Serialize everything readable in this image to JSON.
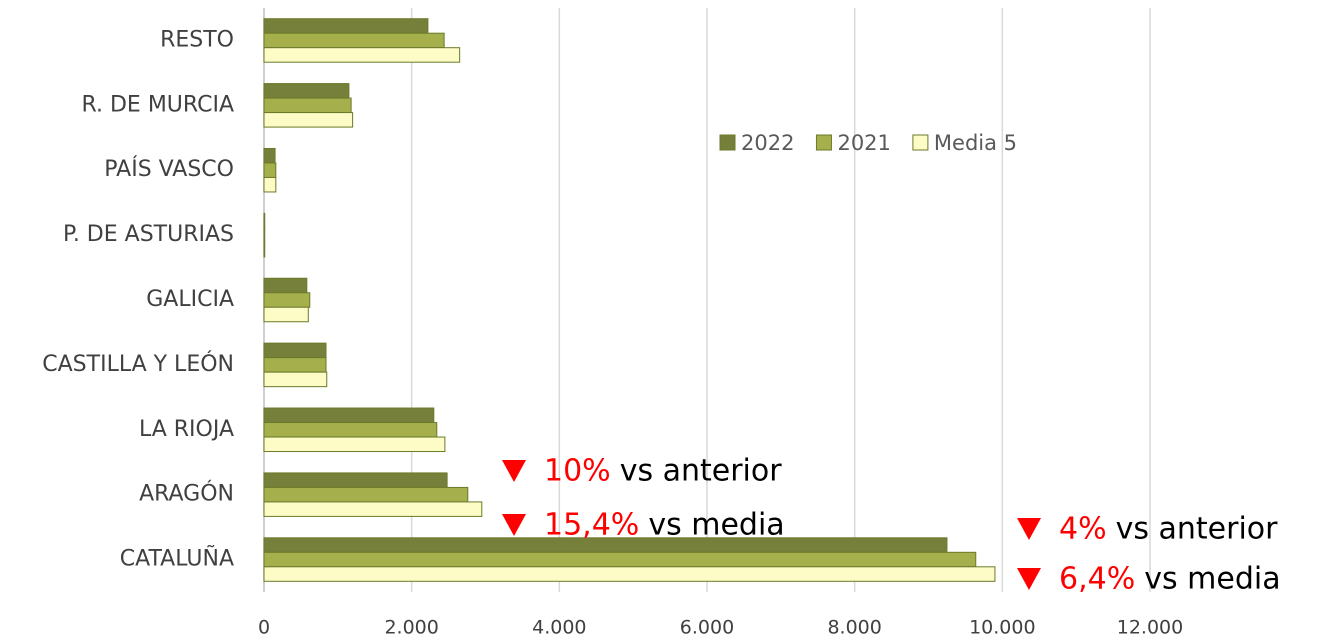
{
  "chart_data": {
    "type": "bar",
    "orientation": "horizontal",
    "categories": [
      "RESTO",
      "R. DE MURCIA",
      "PAÍS VASCO",
      "P. DE ASTURIAS",
      "GALICIA",
      "CASTILLA Y LEÓN",
      "LA RIOJA",
      "ARAGÓN",
      "CATALUÑA"
    ],
    "series": [
      {
        "name": "2022",
        "color": "#76803a",
        "values": [
          2220,
          1150,
          150,
          10,
          580,
          840,
          2300,
          2480,
          9250
        ]
      },
      {
        "name": "2021",
        "color": "#a5b04d",
        "values": [
          2440,
          1180,
          160,
          10,
          620,
          840,
          2340,
          2760,
          9640
        ]
      },
      {
        "name": "Media 5",
        "color": "#fdfbc6",
        "values": [
          2650,
          1200,
          160,
          10,
          600,
          850,
          2450,
          2950,
          9900
        ]
      }
    ],
    "xlim": [
      0,
      12000
    ],
    "xticks": [
      0,
      {
        "value": 2000,
        "label": "2.000"
      },
      {
        "value": 4000,
        "label": "4.000"
      },
      {
        "value": 6000,
        "label": "6.000"
      },
      {
        "value": 8000,
        "label": "8.000"
      },
      {
        "value": 10000,
        "label": "10.000"
      },
      {
        "value": 12000,
        "label": "12.000"
      }
    ],
    "grid": true,
    "annotations": [
      {
        "value": "10%",
        "text": "vs anterior"
      },
      {
        "value": "15,4%",
        "text": "vs media"
      },
      {
        "value": "4%",
        "text": "vs anterior"
      },
      {
        "value": "6,4%",
        "text": "vs media"
      }
    ]
  }
}
